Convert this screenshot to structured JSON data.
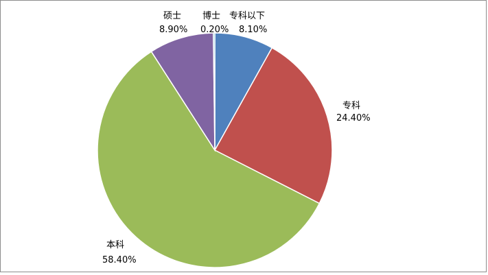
{
  "chart_data": {
    "type": "pie",
    "title": "",
    "legend": "none",
    "slices": [
      {
        "label": "专科以下",
        "value": 8.1,
        "display": "8.10%",
        "color": "#4F81BD"
      },
      {
        "label": "专科",
        "value": 24.4,
        "display": "24.40%",
        "color": "#C0504D"
      },
      {
        "label": "本科",
        "value": 58.4,
        "display": "58.40%",
        "color": "#9BBB59"
      },
      {
        "label": "硕士",
        "value": 8.9,
        "display": "8.90%",
        "color": "#8064A2"
      },
      {
        "label": "博士",
        "value": 0.2,
        "display": "0.20%",
        "color": "#4BACC6"
      }
    ]
  }
}
